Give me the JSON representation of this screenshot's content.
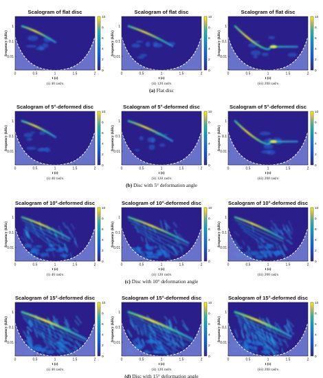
{
  "colors": {
    "background": "#2a1f8a",
    "coi": "#6f7bd0",
    "ridge_high": "#f6e920",
    "ridge_mid": "#2bbfa5",
    "ridge_low": "#2f7fdb"
  },
  "colorbar": {
    "ticks": [
      "0",
      "2",
      "4",
      "6",
      "8",
      "10"
    ],
    "colormap": "parula"
  },
  "axes": {
    "x_ticks": [
      "0",
      "0.5",
      "1",
      "1.5",
      "2"
    ],
    "y_ticks": [
      "1",
      "0.1",
      "0.01"
    ],
    "xlabel": "t (s)",
    "ylabel": "frequency (kHz)"
  },
  "rows": [
    {
      "caption_letter": "(a)",
      "caption_text": "Flat disc",
      "panels": [
        {
          "title": "Scalogram of flat disc",
          "sublabel": "(i) 40 rad/s",
          "pattern": "short"
        },
        {
          "title": "Scalogram of flat disc",
          "sublabel": "(ii) 120 rad/s",
          "pattern": "medium"
        },
        {
          "title": "Scalogram of flat disc",
          "sublabel": "(iii) 200 rad/s",
          "pattern": "long"
        }
      ]
    },
    {
      "caption_letter": "(b)",
      "caption_text": "Disc with 5° deformation angle",
      "panels": [
        {
          "title": "Scalogram of 5°-deformed disc",
          "sublabel": "(i) 40 rad/s",
          "pattern": "short"
        },
        {
          "title": "Scalogram of 5°-deformed disc",
          "sublabel": "(ii) 120 rad/s",
          "pattern": "medium"
        },
        {
          "title": "Scalogram of 5°-deformed disc",
          "sublabel": "(iii) 200 rad/s",
          "pattern": "long"
        }
      ]
    },
    {
      "caption_letter": "(c)",
      "caption_text": "Disc with 10° deformation angle",
      "panels": [
        {
          "title": "Scalogram of 10°-deformed disc",
          "sublabel": "(i) 40 rad/s",
          "pattern": "textured"
        },
        {
          "title": "Scalogram of 10°-deformed disc",
          "sublabel": "(ii) 120 rad/s",
          "pattern": "textured-long"
        },
        {
          "title": "Scalogram of 10°-deformed disc",
          "sublabel": "(iii) 200 rad/s",
          "pattern": "textured"
        }
      ]
    },
    {
      "caption_letter": "(d)",
      "caption_text": "Disc with 15° deformation angle",
      "panels": [
        {
          "title": "Scalogram of 15°-deformed disc",
          "sublabel": "(i) 40 rad/s",
          "pattern": "dense"
        },
        {
          "title": "Scalogram of 15°-deformed disc",
          "sublabel": "(ii) 120 rad/s",
          "pattern": "dense"
        },
        {
          "title": "Scalogram of 15°-deformed disc",
          "sublabel": "(iii) 200 rad/s",
          "pattern": "dense-light"
        }
      ]
    }
  ],
  "chart_data": {
    "type": "heatmap",
    "x_range": [
      0,
      2
    ],
    "y_scale": "log",
    "color_range": [
      0,
      10
    ]
  }
}
